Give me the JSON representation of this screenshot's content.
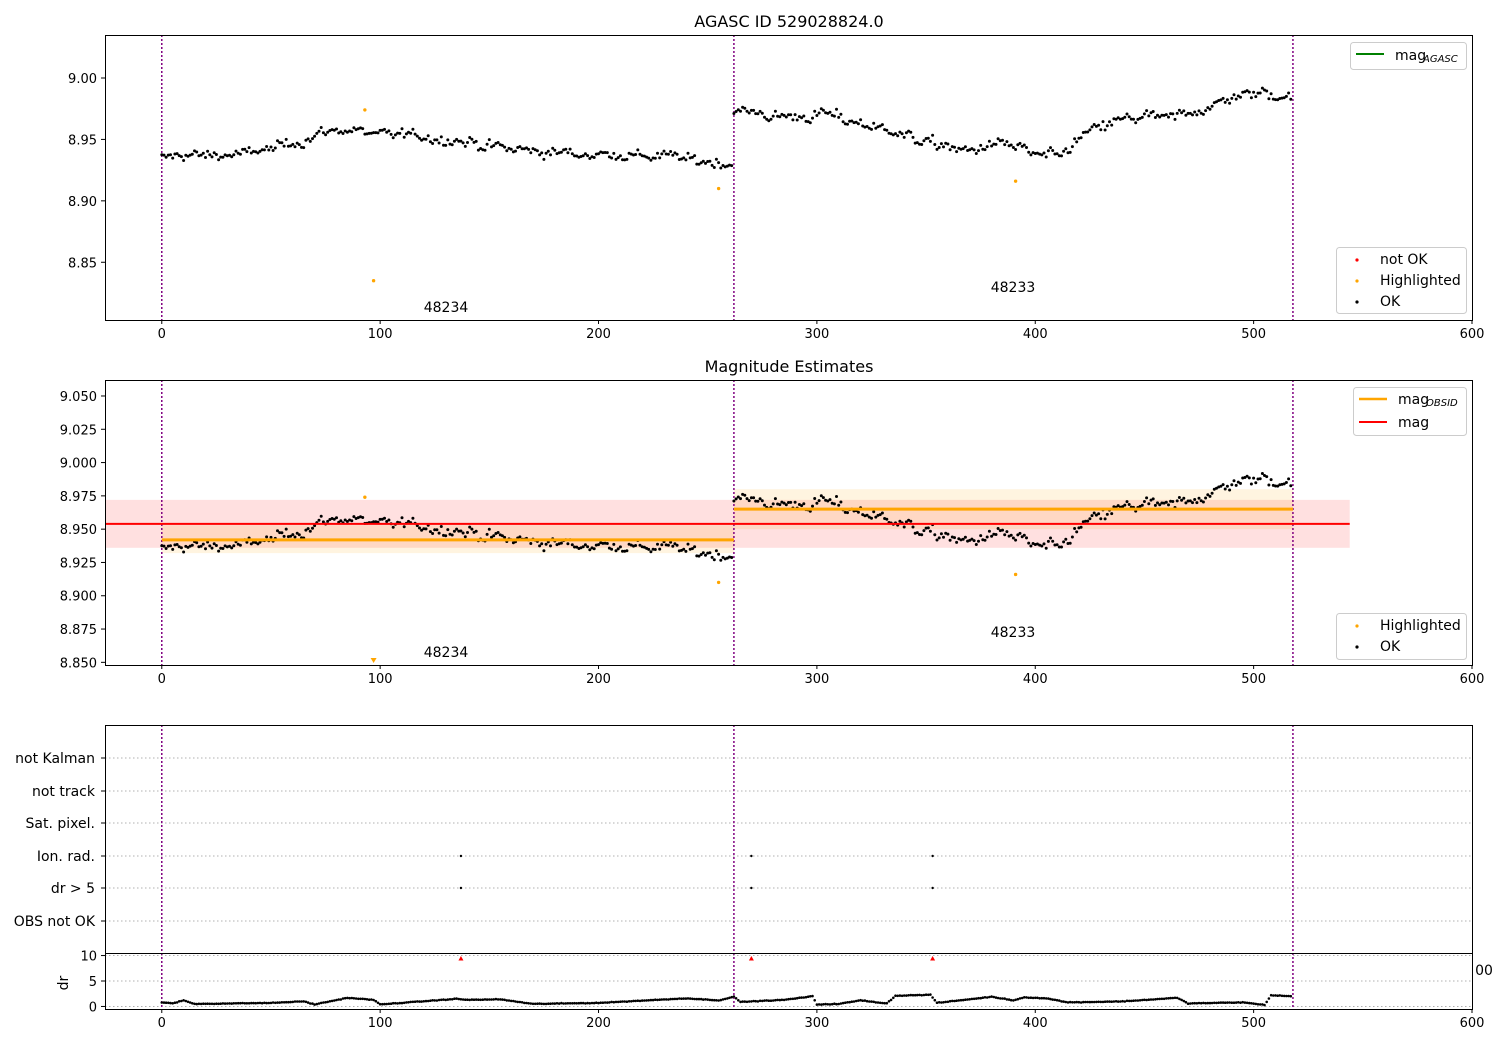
{
  "colors": {
    "ok": "#000000",
    "highlighted": "#ffa500",
    "not_ok": "#ff0000",
    "mag_agasc": "#008000",
    "mag_obsid": "#ffa500",
    "mag_mean": "#ff0000",
    "obsid_line": "#800080",
    "grid": "#b0b0b0"
  },
  "chart_data": [
    {
      "id": "top",
      "type": "scatter",
      "title": "AGASC ID 529028824.0",
      "xlabel": "",
      "ylabel": "",
      "xlim": [
        -26,
        600
      ],
      "ylim": [
        8.803,
        9.035
      ],
      "xticks": [
        0,
        100,
        200,
        300,
        400,
        500,
        600
      ],
      "yticks": [
        8.85,
        8.9,
        8.95,
        9.0
      ],
      "ytick_labels": [
        "8.85",
        "8.90",
        "8.95",
        "9.00"
      ],
      "xtick_labels": [
        "0",
        "100",
        "200",
        "300",
        "400",
        "500",
        "600"
      ],
      "obsid_boundaries": [
        0,
        262,
        518
      ],
      "obsid_labels": [
        {
          "text": "48234",
          "x": 130,
          "y": 8.815
        },
        {
          "text": "48233",
          "x": 390,
          "y": 8.83
        }
      ],
      "series": [
        {
          "name": "mag_AGASC",
          "kind": "hline",
          "y": null
        }
      ],
      "highlighted_points": [
        {
          "x": 93,
          "y": 8.974
        },
        {
          "x": 97,
          "y": 8.835
        },
        {
          "x": 255,
          "y": 8.91
        },
        {
          "x": 391,
          "y": 8.916
        }
      ],
      "ok_segments": [
        {
          "x0": 0,
          "x1": 262,
          "anchors": [
            8.935,
            8.938,
            8.937,
            8.94,
            8.945,
            8.955,
            8.958,
            8.955,
            8.952,
            8.95,
            8.945,
            8.942,
            8.94,
            8.938,
            8.938,
            8.937,
            8.936,
            8.932,
            8.93
          ],
          "noise": 0.009
        },
        {
          "x0": 262,
          "x1": 518,
          "anchors": [
            8.975,
            8.97,
            8.968,
            8.97,
            8.965,
            8.96,
            8.952,
            8.945,
            8.94,
            8.948,
            8.94,
            8.935,
            8.955,
            8.965,
            8.968,
            8.968,
            8.975,
            8.985,
            8.988,
            8.985
          ],
          "noise": 0.01
        }
      ],
      "legends": [
        {
          "position": "top-right",
          "entries": [
            {
              "label": "mag",
              "sub": "AGASC",
              "kind": "line",
              "color_key": "mag_agasc"
            }
          ]
        },
        {
          "position": "bottom-right",
          "entries": [
            {
              "label": "not OK",
              "kind": "dot",
              "color_key": "not_ok"
            },
            {
              "label": "Highlighted",
              "kind": "dot",
              "color_key": "highlighted"
            },
            {
              "label": "OK",
              "kind": "dot",
              "color_key": "ok"
            }
          ]
        }
      ]
    },
    {
      "id": "middle",
      "type": "scatter",
      "title": "Magnitude Estimates",
      "xlim": [
        -26,
        600
      ],
      "ylim": [
        8.848,
        9.062
      ],
      "xticks": [
        0,
        100,
        200,
        300,
        400,
        500,
        600
      ],
      "xtick_labels": [
        "0",
        "100",
        "200",
        "300",
        "400",
        "500",
        "600"
      ],
      "yticks": [
        8.85,
        8.875,
        8.9,
        8.925,
        8.95,
        8.975,
        9.0,
        9.025,
        9.05
      ],
      "ytick_labels": [
        "8.850",
        "8.875",
        "8.900",
        "8.925",
        "8.950",
        "8.975",
        "9.000",
        "9.025",
        "9.050"
      ],
      "obsid_boundaries": [
        0,
        262,
        518
      ],
      "obsid_labels": [
        {
          "text": "48234",
          "x": 130,
          "y": 8.855
        },
        {
          "text": "48233",
          "x": 390,
          "y": 8.872
        }
      ],
      "mag": {
        "value": 8.954,
        "band": [
          8.936,
          8.972
        ],
        "x0": -26,
        "x1": 544
      },
      "mag_obsid": [
        {
          "x0": 0,
          "x1": 262,
          "value": 8.942,
          "band": [
            8.932,
            8.953
          ]
        },
        {
          "x0": 262,
          "x1": 518,
          "value": 8.965,
          "band": [
            8.95,
            8.98
          ]
        }
      ],
      "highlighted_points": [
        {
          "x": 93,
          "y": 8.974
        },
        {
          "x": 255,
          "y": 8.91
        },
        {
          "x": 391,
          "y": 8.916
        }
      ],
      "offscale_marker": {
        "x": 97,
        "y": 8.851
      },
      "legends": [
        {
          "position": "top-right",
          "entries": [
            {
              "label": "mag",
              "sub": "OBSID",
              "kind": "line",
              "color_key": "mag_obsid"
            },
            {
              "label": "mag",
              "kind": "line",
              "color_key": "mag_mean"
            }
          ]
        },
        {
          "position": "bottom-right",
          "entries": [
            {
              "label": "Highlighted",
              "kind": "dot",
              "color_key": "highlighted"
            },
            {
              "label": "OK",
              "kind": "dot",
              "color_key": "ok"
            }
          ]
        }
      ]
    },
    {
      "id": "flags",
      "type": "scatter",
      "xlim": [
        -26,
        600
      ],
      "categories": [
        "not Kalman",
        "not track",
        "Sat. pixel.",
        "Ion. rad.",
        "dr > 5",
        "OBS not OK"
      ],
      "obsid_boundaries": [
        0,
        262,
        518
      ],
      "flag_points": [
        {
          "category": "Ion. rad.",
          "x": [
            137,
            270,
            353
          ]
        },
        {
          "category": "dr > 5",
          "x": [
            137,
            270,
            353
          ]
        }
      ]
    },
    {
      "id": "dr",
      "type": "scatter",
      "ylabel": "dr",
      "xlim": [
        -26,
        600
      ],
      "ylim": [
        -0.5,
        10.5
      ],
      "yticks": [
        0,
        5,
        10
      ],
      "ytick_labels": [
        "0",
        "5",
        "10"
      ],
      "xticks": [
        0,
        100,
        200,
        300,
        400,
        500,
        600
      ],
      "xtick_labels": [
        "0",
        "100",
        "200",
        "300",
        "400",
        "500",
        "600"
      ],
      "right_clipped_label": "00",
      "obsid_boundaries": [
        0,
        262,
        518
      ],
      "clipped_markers": [
        {
          "x": 137,
          "y": 10
        },
        {
          "x": 270,
          "y": 10
        },
        {
          "x": 353,
          "y": 10
        }
      ],
      "dr_profile": [
        [
          0,
          0.8
        ],
        [
          5,
          0.6
        ],
        [
          10,
          1.2
        ],
        [
          15,
          0.5
        ],
        [
          50,
          0.7
        ],
        [
          65,
          1.0
        ],
        [
          70,
          0.4
        ],
        [
          85,
          1.7
        ],
        [
          97,
          1.3
        ],
        [
          100,
          0.4
        ],
        [
          135,
          1.5
        ],
        [
          140,
          1.3
        ],
        [
          155,
          1.4
        ],
        [
          170,
          0.5
        ],
        [
          200,
          0.7
        ],
        [
          240,
          1.6
        ],
        [
          255,
          1.2
        ],
        [
          262,
          1.9
        ],
        [
          265,
          0.9
        ],
        [
          285,
          1.3
        ],
        [
          298,
          2.0
        ],
        [
          300,
          0.4
        ],
        [
          310,
          0.5
        ],
        [
          320,
          1.2
        ],
        [
          332,
          0.6
        ],
        [
          336,
          2.1
        ],
        [
          352,
          2.3
        ],
        [
          355,
          0.7
        ],
        [
          380,
          1.9
        ],
        [
          390,
          1.2
        ],
        [
          395,
          1.8
        ],
        [
          405,
          1.6
        ],
        [
          415,
          0.8
        ],
        [
          440,
          1.0
        ],
        [
          465,
          1.7
        ],
        [
          470,
          0.6
        ],
        [
          495,
          0.8
        ],
        [
          505,
          0.3
        ],
        [
          508,
          2.2
        ],
        [
          518,
          2.0
        ]
      ]
    }
  ]
}
